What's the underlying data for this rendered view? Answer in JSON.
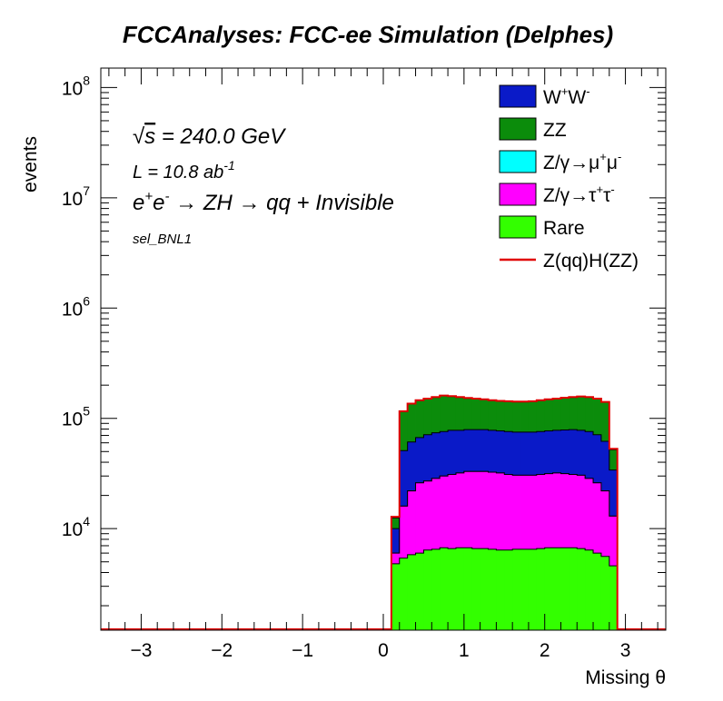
{
  "chart_data": {
    "type": "area",
    "title": "FCCAnalyses: FCC-ee Simulation (Delphes)",
    "xlabel": "Missing θ",
    "ylabel": "events",
    "xlim": [
      -3.5,
      3.5
    ],
    "ylim": [
      1200,
      150000000
    ],
    "yscale": "log",
    "grid": false,
    "legend_position": "top-right",
    "annotations": {
      "sqrt_s": "√s = 240.0 GeV",
      "sqrt_s_symbol": "√",
      "sqrt_s_var": "s",
      "sqrt_s_rest": " = 240.0 GeV",
      "lumi_prefix": "L = 10.8 ab",
      "lumi_exp": "-1",
      "process": "e⁺e⁻ → ZH → qq + Invisible",
      "process_e1": "e",
      "process_e1_sup": "+",
      "process_e2": "e",
      "process_e2_sup": "-",
      "process_rest": " → ZH → qq + Invisible",
      "selection": "sel_BNL1"
    },
    "x_ticks": [
      -3,
      -2,
      -1,
      0,
      1,
      2,
      3
    ],
    "x_tick_labels": [
      "−3",
      "−2",
      "−1",
      "0",
      "1",
      "2",
      "3"
    ],
    "y_ticks": [
      {
        "base": "10",
        "exp": "4",
        "value": 10000
      },
      {
        "base": "10",
        "exp": "5",
        "value": 100000
      },
      {
        "base": "10",
        "exp": "6",
        "value": 1000000
      },
      {
        "base": "10",
        "exp": "7",
        "value": 10000000
      },
      {
        "base": "10",
        "exp": "8",
        "value": 100000000
      }
    ],
    "bin_width": 0.1,
    "x_start": 0.1,
    "stack_order": [
      "Rare",
      "Z/γ→τ⁺τ⁻",
      "Z/γ→μ⁺μ⁻",
      "W⁺W⁻",
      "ZZ"
    ],
    "cumulative_tops": {
      "Rare": [
        4800,
        5400,
        5800,
        6000,
        6400,
        6500,
        6700,
        6600,
        6700,
        6700,
        6600,
        6600,
        6500,
        6400,
        6400,
        6500,
        6500,
        6500,
        6600,
        6700,
        6700,
        6700,
        6700,
        6600,
        6400,
        6000,
        5600,
        4600
      ],
      "Z/γ→τ⁺τ⁻": [
        6000,
        16000,
        22000,
        26000,
        27000,
        28500,
        30000,
        31000,
        32000,
        33000,
        33000,
        33000,
        32500,
        32000,
        31000,
        30500,
        30500,
        30500,
        31000,
        31500,
        32000,
        31500,
        31000,
        30500,
        28500,
        26000,
        22000,
        13000
      ],
      "Z/γ→μ⁺μ⁻": [
        6000,
        16000,
        22000,
        26000,
        27000,
        28500,
        30000,
        31000,
        32000,
        33000,
        33000,
        33000,
        32500,
        32000,
        31000,
        30500,
        30500,
        30500,
        31000,
        31500,
        32000,
        31500,
        31000,
        30500,
        28500,
        26000,
        22000,
        13000
      ],
      "W⁺W⁻": [
        10000,
        51000,
        61000,
        67000,
        71000,
        74000,
        76000,
        78000,
        78000,
        79000,
        79000,
        79000,
        78000,
        77000,
        76000,
        75000,
        75000,
        75000,
        76000,
        77000,
        78000,
        78500,
        79000,
        78000,
        76000,
        71000,
        62000,
        34000
      ],
      "ZZ": [
        12500,
        115000,
        135000,
        145000,
        150000,
        155000,
        160000,
        158000,
        155000,
        152000,
        150000,
        148000,
        145000,
        143000,
        142000,
        141000,
        141000,
        142000,
        145000,
        148000,
        150000,
        153000,
        155000,
        157000,
        155000,
        150000,
        140000,
        52000
      ]
    },
    "signal": {
      "name": "Z(qq)H(ZZ)",
      "values": [
        12800,
        116000,
        136000,
        146000,
        151000,
        156000,
        161000,
        159000,
        156000,
        153000,
        151000,
        149000,
        146000,
        144000,
        143000,
        142000,
        142000,
        143000,
        146000,
        149000,
        151000,
        154000,
        156000,
        158000,
        156000,
        151000,
        141000,
        53000
      ]
    },
    "legend": [
      {
        "key": "ww",
        "label_base": "W",
        "label_sup1": "+",
        "label_mid": "W",
        "label_sup2": "-",
        "label_tail": "",
        "color": "#0a1ac8",
        "kind": "fill"
      },
      {
        "key": "zz",
        "label_base": "ZZ",
        "label_sup1": "",
        "label_mid": "",
        "label_sup2": "",
        "label_tail": "",
        "color": "#0b8c0b",
        "kind": "fill"
      },
      {
        "key": "mumu",
        "label_base": "Z/γ→μ",
        "label_sup1": "+",
        "label_mid": "μ",
        "label_sup2": "-",
        "label_tail": "",
        "color": "#00ffff",
        "kind": "fill"
      },
      {
        "key": "tautau",
        "label_base": "Z/γ→τ",
        "label_sup1": "+",
        "label_mid": "τ",
        "label_sup2": "-",
        "label_tail": "",
        "color": "#ff00ff",
        "kind": "fill"
      },
      {
        "key": "rare",
        "label_base": "Rare",
        "label_sup1": "",
        "label_mid": "",
        "label_sup2": "",
        "label_tail": "",
        "color": "#33ff00",
        "kind": "fill"
      },
      {
        "key": "sig",
        "label_base": "Z(qq)H(ZZ)",
        "label_sup1": "",
        "label_mid": "",
        "label_sup2": "",
        "label_tail": "",
        "color": "#e00000",
        "kind": "line"
      }
    ]
  }
}
